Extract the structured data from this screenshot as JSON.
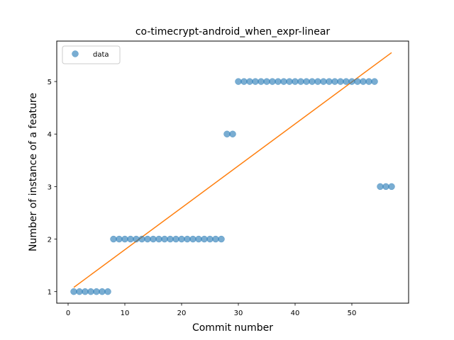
{
  "chart_data": {
    "type": "scatter",
    "title": "co-timecrypt-android_when_expr-linear",
    "xlabel": "Commit number",
    "ylabel": "Number of instance of a feature",
    "xlim": [
      -2,
      60
    ],
    "ylim": [
      0.78,
      5.77
    ],
    "xticks": [
      0,
      10,
      20,
      30,
      40,
      50
    ],
    "yticks": [
      1,
      2,
      3,
      4,
      5
    ],
    "grid": false,
    "legend_position": "top-left",
    "series": [
      {
        "name": "data",
        "kind": "scatter",
        "color": "#1f77b4",
        "x": [
          1,
          2,
          3,
          4,
          5,
          6,
          7,
          8,
          9,
          10,
          11,
          12,
          13,
          14,
          15,
          16,
          17,
          18,
          19,
          20,
          21,
          22,
          23,
          24,
          25,
          26,
          27,
          28,
          29,
          30,
          31,
          32,
          33,
          34,
          35,
          36,
          37,
          38,
          39,
          40,
          41,
          42,
          43,
          44,
          45,
          46,
          47,
          48,
          49,
          50,
          51,
          52,
          53,
          54,
          55,
          56,
          57
        ],
        "y": [
          1,
          1,
          1,
          1,
          1,
          1,
          1,
          2,
          2,
          2,
          2,
          2,
          2,
          2,
          2,
          2,
          2,
          2,
          2,
          2,
          2,
          2,
          2,
          2,
          2,
          2,
          2,
          4,
          4,
          5,
          5,
          5,
          5,
          5,
          5,
          5,
          5,
          5,
          5,
          5,
          5,
          5,
          5,
          5,
          5,
          5,
          5,
          5,
          5,
          5,
          5,
          5,
          5,
          5,
          3,
          3,
          3
        ]
      },
      {
        "kind": "line",
        "color": "#ff7f0e",
        "x": [
          1,
          57
        ],
        "y": [
          1.08,
          5.55
        ]
      }
    ]
  }
}
